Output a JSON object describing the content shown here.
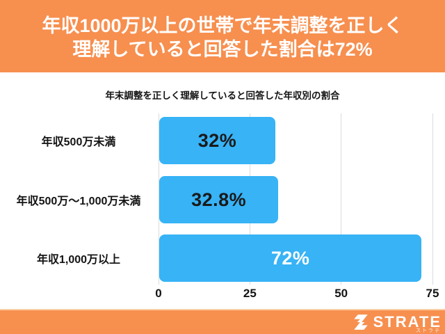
{
  "header": {
    "title_line1": "年収1000万以上の世帯で年末調整を正しく",
    "title_line2": "理解していると回答した割合は72%"
  },
  "chart_data": {
    "type": "bar",
    "orientation": "horizontal",
    "title": "年末調整を正しく理解していると回答した年収別の割合",
    "categories": [
      "年収500万未満",
      "年収500万～1,000万未満",
      "年収1,000万以上"
    ],
    "values": [
      32,
      32.8,
      72
    ],
    "value_labels": [
      "32%",
      "32.8%",
      "72%"
    ],
    "value_label_colors": [
      "#1a1a1a",
      "#1a1a1a",
      "#ffffff"
    ],
    "xlabel": "",
    "ylabel": "",
    "xlim": [
      0,
      75
    ],
    "x_ticks": [
      "0",
      "25",
      "50",
      "75"
    ],
    "bar_color": "#37b3f6",
    "grid": true,
    "legend_position": "none"
  },
  "footer": {
    "brand": "STRATE",
    "brand_sub": "ストラテ",
    "logo_icon": "strate-s-icon"
  },
  "colors": {
    "accent_orange": "#f78f4f",
    "bar_blue": "#37b3f6",
    "gridline_gray": "#dbdbdb",
    "text_dark": "#141414",
    "text_white": "#ffffff"
  }
}
